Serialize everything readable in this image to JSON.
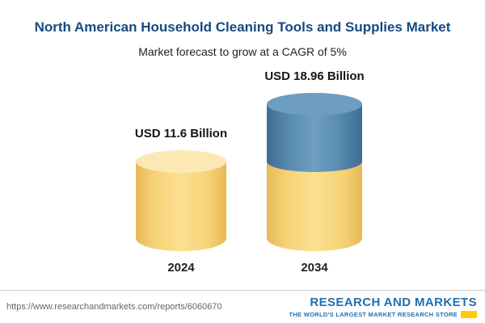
{
  "header": {
    "title": "North American Household Cleaning Tools and Supplies Market",
    "subtitle": "Market forecast to grow at a CAGR of 5%"
  },
  "chart_data": {
    "type": "bar",
    "categories": [
      "2024",
      "2034"
    ],
    "values": [
      11.6,
      18.96
    ],
    "unit": "USD Billion",
    "value_labels": [
      "USD 11.6 Billion",
      "USD 18.96 Billion"
    ],
    "title": "North American Household Cleaning Tools and Supplies Market",
    "subtitle": "Market forecast to grow at a CAGR of 5%",
    "cagr": "5%",
    "colors": {
      "base_segment": "#F6D276",
      "growth_segment": "#5A8CB2",
      "title_text": "#174A82"
    },
    "legend_position": "none",
    "grid": false
  },
  "footer": {
    "url": "https://www.researchandmarkets.com/reports/6060670",
    "brand": {
      "word1": "RESEARCH",
      "word2": "AND",
      "word3": "MARKETS",
      "tagline": "THE WORLD'S LARGEST MARKET RESEARCH STORE"
    }
  }
}
